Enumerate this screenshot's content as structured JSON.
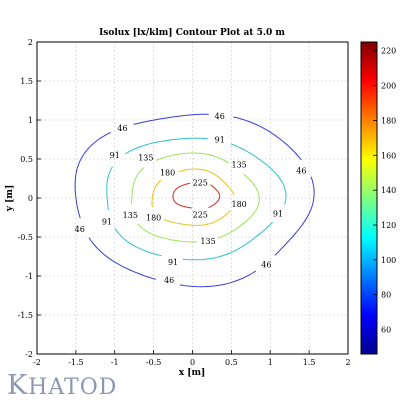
{
  "brand": {
    "first": "K",
    "rest": "HATOD"
  },
  "chart_data": {
    "type": "contour",
    "title": "Isolux [lx/klm] Contour Plot at 5.0 m",
    "xlabel": "x [m]",
    "ylabel": "y [m]",
    "xlim": [
      -2,
      2
    ],
    "ylim": [
      -2,
      2
    ],
    "xticks": [
      -2,
      -1.5,
      -1,
      -0.5,
      0,
      0.5,
      1,
      1.5,
      2
    ],
    "yticks": [
      -2,
      -1.5,
      -1,
      -0.5,
      0,
      0.5,
      1,
      1.5,
      2
    ],
    "grid": true,
    "levels": [
      {
        "value": 46,
        "color": "#3b3dd6",
        "cx": 0.0,
        "cy": 0.0,
        "rx": 1.53,
        "ry": 1.1,
        "labels": [
          [
            0.35,
            1.05
          ],
          [
            -0.9,
            0.9
          ],
          [
            1.4,
            0.35
          ],
          [
            -1.45,
            -0.4
          ],
          [
            0.95,
            -0.85
          ],
          [
            -0.3,
            -1.05
          ]
        ]
      },
      {
        "value": 91,
        "color": "#2fc2c8",
        "cx": 0.0,
        "cy": 0.0,
        "rx": 1.15,
        "ry": 0.78,
        "labels": [
          [
            0.35,
            0.75
          ],
          [
            -1.0,
            0.55
          ],
          [
            1.1,
            -0.2
          ],
          [
            -1.1,
            -0.3
          ],
          [
            -0.25,
            -0.82
          ]
        ]
      },
      {
        "value": 135,
        "color": "#9ee35b",
        "cx": 0.0,
        "cy": 0.0,
        "rx": 0.82,
        "ry": 0.57,
        "labels": [
          [
            -0.6,
            0.52
          ],
          [
            0.6,
            0.43
          ],
          [
            -0.8,
            -0.22
          ],
          [
            0.2,
            -0.55
          ]
        ]
      },
      {
        "value": 180,
        "color": "#e6c21b",
        "cx": 0.0,
        "cy": 0.0,
        "rx": 0.53,
        "ry": 0.36,
        "labels": [
          [
            -0.32,
            0.33
          ],
          [
            0.6,
            -0.08
          ],
          [
            -0.5,
            -0.25
          ]
        ]
      },
      {
        "value": 225,
        "color": "#d62a1c",
        "cx": 0.05,
        "cy": 0.03,
        "rx": 0.3,
        "ry": 0.17,
        "labels": [
          [
            0.1,
            0.2
          ],
          [
            0.1,
            -0.21
          ]
        ]
      }
    ],
    "colorbar": {
      "range": [
        46,
        225
      ],
      "ticks": [
        60,
        80,
        100,
        120,
        140,
        160,
        180,
        200,
        220
      ]
    }
  }
}
